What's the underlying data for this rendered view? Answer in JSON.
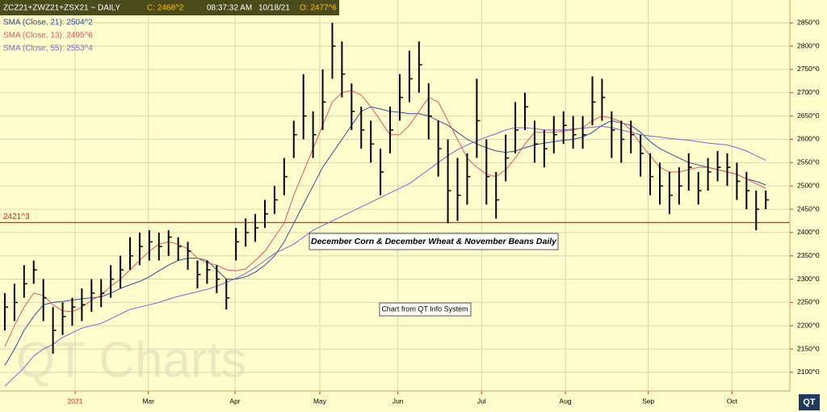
{
  "header": {
    "symbol": "ZCZ21+ZWZ21+ZSX21  ~  DAILY",
    "close": "C: 2468^2",
    "time": "08:37:32 AM",
    "date": "10/18/21",
    "open": "O: 2477^6"
  },
  "chart_data": {
    "type": "ohlc",
    "title": "December Corn & December Wheat & November Beans Daily",
    "annotation": "Chart from QT Info System",
    "watermark": "QT Charts",
    "logo": "QT",
    "bar_color": "#000000",
    "grid": true,
    "ylim": [
      2060,
      2899
    ],
    "xlim": [
      0,
      82
    ],
    "yticks": [
      {
        "value": 2100,
        "label": "2100^0"
      },
      {
        "value": 2150,
        "label": "2150^0"
      },
      {
        "value": 2200,
        "label": "2200^0"
      },
      {
        "value": 2250,
        "label": "2250^0"
      },
      {
        "value": 2300,
        "label": "2300^0"
      },
      {
        "value": 2350,
        "label": "2350^0"
      },
      {
        "value": 2400,
        "label": "2400^0"
      },
      {
        "value": 2450,
        "label": "2450^0"
      },
      {
        "value": 2500,
        "label": "2500^0"
      },
      {
        "value": 2550,
        "label": "2550^0"
      },
      {
        "value": 2600,
        "label": "2600^0"
      },
      {
        "value": 2650,
        "label": "2650^0"
      },
      {
        "value": 2700,
        "label": "2700^0"
      },
      {
        "value": 2750,
        "label": "2750^0"
      },
      {
        "value": 2800,
        "label": "2800^0"
      },
      {
        "value": 2850,
        "label": "2850^0"
      }
    ],
    "xticks": [
      {
        "value": 7.8,
        "label": "2021"
      },
      {
        "value": 15.4,
        "label": "Mar"
      },
      {
        "value": 24.4,
        "label": "Apr"
      },
      {
        "value": 33.2,
        "label": "May"
      },
      {
        "value": 41.3,
        "label": "Jun"
      },
      {
        "value": 50.0,
        "label": "Jul"
      },
      {
        "value": 58.7,
        "label": "Aug"
      },
      {
        "value": 67.3,
        "label": "Sep"
      },
      {
        "value": 76.0,
        "label": "Oct"
      }
    ],
    "hline": {
      "value": 2421.375,
      "label": "2421^3",
      "color": "#e0201b"
    },
    "high": [
      2270,
      2290,
      2330,
      2340,
      2300,
      2240,
      2250,
      2260,
      2280,
      2300,
      2300,
      2330,
      2350,
      2390,
      2400,
      2405,
      2400,
      2405,
      2390,
      2380,
      2340,
      2340,
      2330,
      2300,
      2410,
      2430,
      2440,
      2470,
      2500,
      2560,
      2640,
      2740,
      2660,
      2750,
      2850,
      2810,
      2720,
      2670,
      2640,
      2580,
      2670,
      2740,
      2790,
      2810,
      2720,
      2640,
      2600,
      2560,
      2570,
      2730,
      2600,
      2530,
      2610,
      2680,
      2700,
      2640,
      2620,
      2650,
      2660,
      2650,
      2650,
      2735,
      2730,
      2660,
      2640,
      2640,
      2610,
      2570,
      2550,
      2530,
      2540,
      2570,
      2530,
      2560,
      2575,
      2570,
      2550,
      2530,
      2490,
      2490
    ],
    "low": [
      2190,
      2210,
      2260,
      2290,
      2210,
      2140,
      2180,
      2200,
      2210,
      2230,
      2240,
      2260,
      2280,
      2320,
      2330,
      2340,
      2340,
      2350,
      2340,
      2320,
      2280,
      2290,
      2270,
      2235,
      2340,
      2370,
      2380,
      2410,
      2440,
      2480,
      2560,
      2600,
      2560,
      2620,
      2730,
      2690,
      2620,
      2580,
      2550,
      2480,
      2570,
      2640,
      2680,
      2700,
      2600,
      2520,
      2420,
      2425,
      2460,
      2560,
      2460,
      2430,
      2510,
      2570,
      2620,
      2550,
      2540,
      2570,
      2590,
      2580,
      2580,
      2630,
      2640,
      2560,
      2550,
      2570,
      2520,
      2480,
      2460,
      2440,
      2460,
      2490,
      2460,
      2490,
      2510,
      2500,
      2470,
      2450,
      2405,
      2450
    ],
    "close": [
      2240,
      2250,
      2290,
      2320,
      2260,
      2190,
      2220,
      2240,
      2245,
      2270,
      2270,
      2300,
      2320,
      2350,
      2370,
      2380,
      2370,
      2390,
      2370,
      2360,
      2310,
      2320,
      2300,
      2260,
      2380,
      2400,
      2410,
      2440,
      2470,
      2520,
      2610,
      2650,
      2610,
      2680,
      2800,
      2740,
      2660,
      2620,
      2590,
      2530,
      2620,
      2690,
      2730,
      2760,
      2650,
      2580,
      2490,
      2480,
      2520,
      2640,
      2520,
      2470,
      2560,
      2620,
      2670,
      2590,
      2580,
      2610,
      2630,
      2610,
      2610,
      2680,
      2690,
      2620,
      2600,
      2610,
      2570,
      2520,
      2500,
      2480,
      2500,
      2540,
      2490,
      2530,
      2540,
      2540,
      2510,
      2490,
      2450,
      2470
    ],
    "series": [
      {
        "name": "SMA (Close, 21): 2504^2",
        "color": "#2a4f9c",
        "values": [
          2115,
          2150,
          2190,
          2220,
          2245,
          2250,
          2252,
          2255,
          2258,
          2260,
          2262,
          2270,
          2280,
          2288,
          2295,
          2305,
          2318,
          2330,
          2340,
          2345,
          2345,
          2340,
          2320,
          2300,
          2300,
          2305,
          2315,
          2330,
          2350,
          2380,
          2420,
          2460,
          2500,
          2540,
          2570,
          2600,
          2630,
          2660,
          2670,
          2665,
          2660,
          2658,
          2655,
          2655,
          2650,
          2640,
          2630,
          2615,
          2600,
          2590,
          2582,
          2575,
          2572,
          2575,
          2582,
          2588,
          2592,
          2595,
          2598,
          2600,
          2605,
          2615,
          2630,
          2640,
          2635,
          2630,
          2615,
          2595,
          2580,
          2570,
          2560,
          2550,
          2545,
          2540,
          2535,
          2530,
          2525,
          2515,
          2510,
          2502
        ]
      },
      {
        "name": "SMA (Close, 13): 2495^6",
        "color": "#e8506a",
        "values": [
          2155,
          2200,
          2240,
          2270,
          2265,
          2245,
          2232,
          2230,
          2240,
          2255,
          2265,
          2285,
          2300,
          2320,
          2340,
          2360,
          2375,
          2380,
          2375,
          2365,
          2345,
          2335,
          2330,
          2320,
          2318,
          2322,
          2340,
          2360,
          2390,
          2420,
          2480,
          2530,
          2580,
          2630,
          2680,
          2700,
          2705,
          2695,
          2670,
          2640,
          2610,
          2610,
          2630,
          2660,
          2690,
          2680,
          2640,
          2600,
          2560,
          2540,
          2525,
          2520,
          2535,
          2560,
          2590,
          2615,
          2615,
          2615,
          2618,
          2620,
          2625,
          2640,
          2650,
          2645,
          2638,
          2620,
          2590,
          2565,
          2540,
          2530,
          2530,
          2535,
          2540,
          2540,
          2535,
          2530,
          2525,
          2515,
          2505,
          2495
        ]
      },
      {
        "name": "SMA (Close, 55): 2553^4",
        "color": "#7b63d6",
        "values": [
          2070,
          2090,
          2110,
          2135,
          2150,
          2160,
          2175,
          2185,
          2195,
          2200,
          2205,
          2215,
          2225,
          2235,
          2240,
          2245,
          2250,
          2257,
          2263,
          2268,
          2273,
          2278,
          2285,
          2293,
          2302,
          2312,
          2325,
          2340,
          2355,
          2365,
          2375,
          2390,
          2405,
          2415,
          2425,
          2435,
          2445,
          2455,
          2465,
          2475,
          2485,
          2495,
          2505,
          2520,
          2535,
          2550,
          2565,
          2578,
          2588,
          2597,
          2605,
          2612,
          2620,
          2625,
          2625,
          2623,
          2620,
          2620,
          2620,
          2622,
          2624,
          2626,
          2628,
          2625,
          2620,
          2615,
          2610,
          2607,
          2605,
          2602,
          2600,
          2598,
          2595,
          2592,
          2590,
          2588,
          2582,
          2575,
          2565,
          2555
        ]
      }
    ]
  }
}
